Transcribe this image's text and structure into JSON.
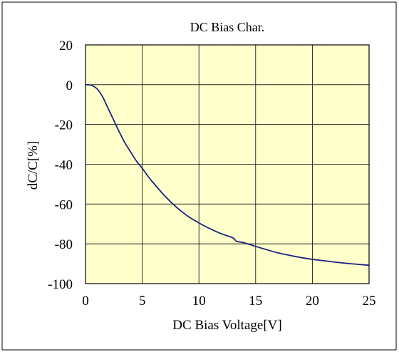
{
  "chart_data": {
    "type": "line",
    "title": "DC Bias Char.",
    "xlabel": "DC Bias Voltage[V]",
    "ylabel": "dC/C[%]",
    "xlim": [
      0,
      25
    ],
    "ylim": [
      -100,
      20
    ],
    "xticks": [
      0,
      5,
      10,
      15,
      20,
      25
    ],
    "yticks": [
      20,
      0,
      -20,
      -40,
      -60,
      -80,
      -100
    ],
    "xtick_labels": [
      "0",
      "5",
      "10",
      "15",
      "20",
      "25"
    ],
    "ytick_labels": [
      "20",
      "0",
      "-20",
      "-40",
      "-60",
      "-80",
      "-100"
    ],
    "grid": true,
    "colors": {
      "plot_background": "#ffffcc",
      "line": "#1a237e",
      "grid": "#000000",
      "frame": "#000000"
    },
    "series": [
      {
        "x": [
          0,
          0.5,
          1,
          1.5,
          2,
          2.5,
          3,
          3.5,
          4,
          4.5,
          5,
          5.5,
          6,
          7,
          8,
          9,
          10,
          11,
          12,
          13,
          13.3,
          14,
          15,
          16,
          17,
          18,
          19,
          20,
          21,
          22,
          23,
          24,
          25
        ],
        "y": [
          0,
          -0.3,
          -2,
          -6,
          -12,
          -18,
          -24,
          -29.5,
          -34,
          -38.5,
          -42,
          -46,
          -49.5,
          -56,
          -61.5,
          -66,
          -69.5,
          -72.5,
          -75,
          -77,
          -78.7,
          -79.5,
          -81.3,
          -83,
          -84.6,
          -85.8,
          -86.9,
          -87.8,
          -88.5,
          -89.2,
          -89.8,
          -90.3,
          -90.8
        ]
      }
    ]
  }
}
